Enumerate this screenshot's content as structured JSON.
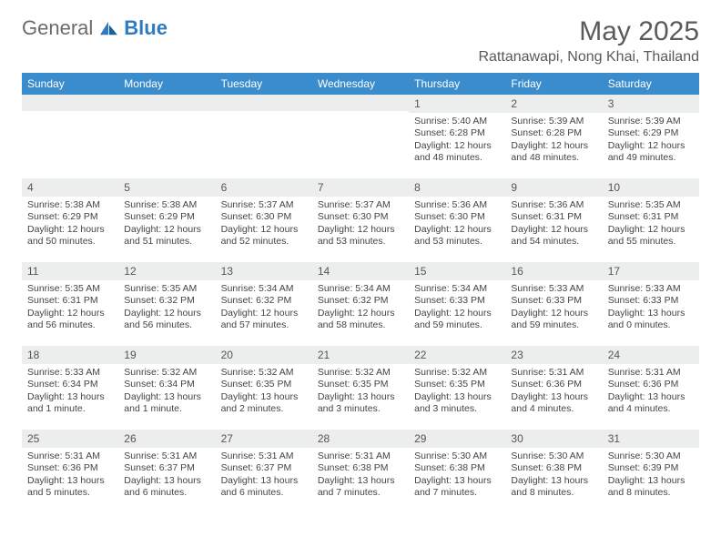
{
  "brand": {
    "general": "General",
    "blue": "Blue"
  },
  "header": {
    "title": "May 2025",
    "location": "Rattanawapi, Nong Khai, Thailand"
  },
  "colors": {
    "header_bg": "#3b8ccc",
    "header_text": "#ffffff",
    "daynum_bg": "#eceded",
    "body_text": "#444444",
    "brand_gray": "#6b6b6b",
    "brand_blue": "#2f7bc2",
    "page_bg": "#ffffff"
  },
  "weekdays": [
    "Sunday",
    "Monday",
    "Tuesday",
    "Wednesday",
    "Thursday",
    "Friday",
    "Saturday"
  ],
  "weeks": [
    [
      {
        "n": "",
        "sr": "",
        "ss": "",
        "dh": "",
        "dm": ""
      },
      {
        "n": "",
        "sr": "",
        "ss": "",
        "dh": "",
        "dm": ""
      },
      {
        "n": "",
        "sr": "",
        "ss": "",
        "dh": "",
        "dm": ""
      },
      {
        "n": "",
        "sr": "",
        "ss": "",
        "dh": "",
        "dm": ""
      },
      {
        "n": "1",
        "sr": "5:40 AM",
        "ss": "6:28 PM",
        "dh": "12",
        "dm": "48"
      },
      {
        "n": "2",
        "sr": "5:39 AM",
        "ss": "6:28 PM",
        "dh": "12",
        "dm": "48"
      },
      {
        "n": "3",
        "sr": "5:39 AM",
        "ss": "6:29 PM",
        "dh": "12",
        "dm": "49"
      }
    ],
    [
      {
        "n": "4",
        "sr": "5:38 AM",
        "ss": "6:29 PM",
        "dh": "12",
        "dm": "50"
      },
      {
        "n": "5",
        "sr": "5:38 AM",
        "ss": "6:29 PM",
        "dh": "12",
        "dm": "51"
      },
      {
        "n": "6",
        "sr": "5:37 AM",
        "ss": "6:30 PM",
        "dh": "12",
        "dm": "52"
      },
      {
        "n": "7",
        "sr": "5:37 AM",
        "ss": "6:30 PM",
        "dh": "12",
        "dm": "53"
      },
      {
        "n": "8",
        "sr": "5:36 AM",
        "ss": "6:30 PM",
        "dh": "12",
        "dm": "53"
      },
      {
        "n": "9",
        "sr": "5:36 AM",
        "ss": "6:31 PM",
        "dh": "12",
        "dm": "54"
      },
      {
        "n": "10",
        "sr": "5:35 AM",
        "ss": "6:31 PM",
        "dh": "12",
        "dm": "55"
      }
    ],
    [
      {
        "n": "11",
        "sr": "5:35 AM",
        "ss": "6:31 PM",
        "dh": "12",
        "dm": "56"
      },
      {
        "n": "12",
        "sr": "5:35 AM",
        "ss": "6:32 PM",
        "dh": "12",
        "dm": "56"
      },
      {
        "n": "13",
        "sr": "5:34 AM",
        "ss": "6:32 PM",
        "dh": "12",
        "dm": "57"
      },
      {
        "n": "14",
        "sr": "5:34 AM",
        "ss": "6:32 PM",
        "dh": "12",
        "dm": "58"
      },
      {
        "n": "15",
        "sr": "5:34 AM",
        "ss": "6:33 PM",
        "dh": "12",
        "dm": "59"
      },
      {
        "n": "16",
        "sr": "5:33 AM",
        "ss": "6:33 PM",
        "dh": "12",
        "dm": "59"
      },
      {
        "n": "17",
        "sr": "5:33 AM",
        "ss": "6:33 PM",
        "dh": "13",
        "dm": "0"
      }
    ],
    [
      {
        "n": "18",
        "sr": "5:33 AM",
        "ss": "6:34 PM",
        "dh": "13",
        "dm": "1"
      },
      {
        "n": "19",
        "sr": "5:32 AM",
        "ss": "6:34 PM",
        "dh": "13",
        "dm": "1"
      },
      {
        "n": "20",
        "sr": "5:32 AM",
        "ss": "6:35 PM",
        "dh": "13",
        "dm": "2"
      },
      {
        "n": "21",
        "sr": "5:32 AM",
        "ss": "6:35 PM",
        "dh": "13",
        "dm": "3"
      },
      {
        "n": "22",
        "sr": "5:32 AM",
        "ss": "6:35 PM",
        "dh": "13",
        "dm": "3"
      },
      {
        "n": "23",
        "sr": "5:31 AM",
        "ss": "6:36 PM",
        "dh": "13",
        "dm": "4"
      },
      {
        "n": "24",
        "sr": "5:31 AM",
        "ss": "6:36 PM",
        "dh": "13",
        "dm": "4"
      }
    ],
    [
      {
        "n": "25",
        "sr": "5:31 AM",
        "ss": "6:36 PM",
        "dh": "13",
        "dm": "5"
      },
      {
        "n": "26",
        "sr": "5:31 AM",
        "ss": "6:37 PM",
        "dh": "13",
        "dm": "6"
      },
      {
        "n": "27",
        "sr": "5:31 AM",
        "ss": "6:37 PM",
        "dh": "13",
        "dm": "6"
      },
      {
        "n": "28",
        "sr": "5:31 AM",
        "ss": "6:38 PM",
        "dh": "13",
        "dm": "7"
      },
      {
        "n": "29",
        "sr": "5:30 AM",
        "ss": "6:38 PM",
        "dh": "13",
        "dm": "7"
      },
      {
        "n": "30",
        "sr": "5:30 AM",
        "ss": "6:38 PM",
        "dh": "13",
        "dm": "8"
      },
      {
        "n": "31",
        "sr": "5:30 AM",
        "ss": "6:39 PM",
        "dh": "13",
        "dm": "8"
      }
    ]
  ],
  "labels": {
    "sunrise": "Sunrise: ",
    "sunset": "Sunset: ",
    "daylight": "Daylight: ",
    "hours": " hours",
    "and": "and ",
    "minute": " minute.",
    "minutes": " minutes."
  }
}
